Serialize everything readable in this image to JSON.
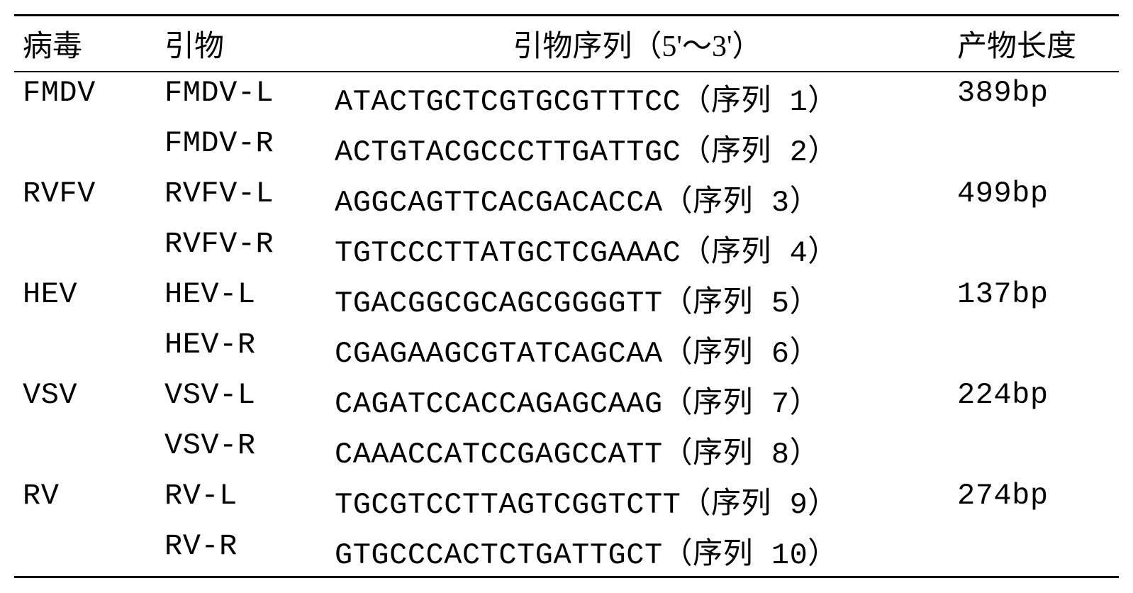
{
  "table": {
    "headers": {
      "virus": "病毒",
      "primer": "引物",
      "sequence": "引物序列（5'～3'）",
      "product": "产物长度"
    },
    "rows": [
      {
        "virus": "FMDV",
        "primer": "FMDV-L",
        "sequence": "ATACTGCTCGTGCGTTTCC（序列 1）",
        "product": "389bp"
      },
      {
        "virus": "",
        "primer": "FMDV-R",
        "sequence": "ACTGTACGCCCTTGATTGC（序列 2）",
        "product": ""
      },
      {
        "virus": "RVFV",
        "primer": "RVFV-L",
        "sequence": "AGGCAGTTCACGACACCA（序列 3）",
        "product": "499bp"
      },
      {
        "virus": "",
        "primer": "RVFV-R",
        "sequence": "TGTCCCTTATGCTCGAAAC（序列 4）",
        "product": ""
      },
      {
        "virus": "HEV",
        "primer": "HEV-L",
        "sequence": "TGACGGCGCAGCGGGGTT（序列 5）",
        "product": "137bp"
      },
      {
        "virus": "",
        "primer": "HEV-R",
        "sequence": "CGAGAAGCGTATCAGCAA（序列 6）",
        "product": ""
      },
      {
        "virus": "VSV",
        "primer": "VSV-L",
        "sequence": "CAGATCCACCAGAGCAAG（序列 7）",
        "product": "224bp"
      },
      {
        "virus": "",
        "primer": "VSV-R",
        "sequence": "CAAACCATCCGAGCCATT（序列 8）",
        "product": ""
      },
      {
        "virus": "RV",
        "primer": "RV-L",
        "sequence": "TGCGTCCTTAGTCGGTCTT（序列 9）",
        "product": "274bp"
      },
      {
        "virus": "",
        "primer": "RV-R",
        "sequence": "GTGCCCACTCTGATTGCT（序列 10）",
        "product": ""
      }
    ],
    "style": {
      "background_color": "#ffffff",
      "text_color": "#000000",
      "border_color": "#000000",
      "top_border_width": 3,
      "header_border_width": 2,
      "bottom_border_width": 3,
      "font_size": 42,
      "font_family_cjk": "SimSun",
      "font_family_mono": "Courier New",
      "column_widths": {
        "virus": 200,
        "primer": 240,
        "product": 240
      }
    }
  }
}
